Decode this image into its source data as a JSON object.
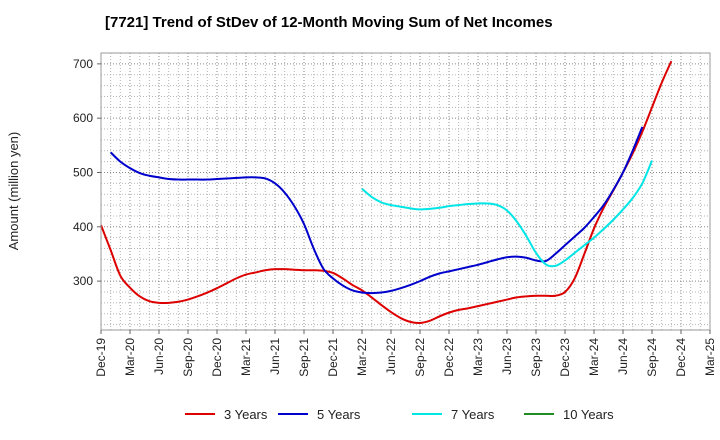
{
  "chart_data": {
    "type": "line",
    "title": "[7721]  Trend of StDev of 12-Month Moving Sum of Net Incomes",
    "ylabel": "Amount (million yen)",
    "xlabel": "",
    "ylim": [
      210,
      720
    ],
    "yticks": [
      300,
      400,
      500,
      600,
      700
    ],
    "x_start": "Dec-19",
    "x_end": "Mar-25",
    "xticks": [
      "Dec-19",
      "Mar-20",
      "Jun-20",
      "Sep-20",
      "Dec-20",
      "Mar-21",
      "Jun-21",
      "Sep-21",
      "Dec-21",
      "Mar-22",
      "Jun-22",
      "Sep-22",
      "Dec-22",
      "Mar-23",
      "Jun-23",
      "Sep-23",
      "Dec-23",
      "Mar-24",
      "Jun-24",
      "Sep-24",
      "Dec-24",
      "Mar-25"
    ],
    "grid": true,
    "legend_position": "bottom",
    "series": [
      {
        "name": "3 Years",
        "color": "#dd0000",
        "points": [
          [
            "Dec-19",
            403
          ],
          [
            "Jan-20",
            357
          ],
          [
            "Feb-20",
            310
          ],
          [
            "Mar-20",
            288
          ],
          [
            "Apr-20",
            272
          ],
          [
            "May-20",
            263
          ],
          [
            "Jun-20",
            260
          ],
          [
            "Jul-20",
            260
          ],
          [
            "Aug-20",
            262
          ],
          [
            "Sep-20",
            266
          ],
          [
            "Oct-20",
            272
          ],
          [
            "Nov-20",
            279
          ],
          [
            "Dec-20",
            287
          ],
          [
            "Jan-21",
            296
          ],
          [
            "Feb-21",
            305
          ],
          [
            "Mar-21",
            312
          ],
          [
            "Apr-21",
            316
          ],
          [
            "May-21",
            320
          ],
          [
            "Jun-21",
            322
          ],
          [
            "Jul-21",
            322
          ],
          [
            "Aug-21",
            321
          ],
          [
            "Sep-21",
            320
          ],
          [
            "Oct-21",
            320
          ],
          [
            "Nov-21",
            319
          ],
          [
            "Dec-21",
            315
          ],
          [
            "Jan-22",
            305
          ],
          [
            "Feb-22",
            293
          ],
          [
            "Mar-22",
            283
          ],
          [
            "Apr-22",
            270
          ],
          [
            "May-22",
            256
          ],
          [
            "Jun-22",
            243
          ],
          [
            "Jul-22",
            232
          ],
          [
            "Aug-22",
            225
          ],
          [
            "Sep-22",
            223
          ],
          [
            "Oct-22",
            227
          ],
          [
            "Nov-22",
            235
          ],
          [
            "Dec-22",
            242
          ],
          [
            "Jan-23",
            247
          ],
          [
            "Feb-23",
            250
          ],
          [
            "Mar-23",
            254
          ],
          [
            "Apr-23",
            258
          ],
          [
            "May-23",
            262
          ],
          [
            "Jun-23",
            266
          ],
          [
            "Jul-23",
            270
          ],
          [
            "Aug-23",
            272
          ],
          [
            "Sep-23",
            273
          ],
          [
            "Oct-23",
            273
          ],
          [
            "Nov-23",
            273
          ],
          [
            "Dec-23",
            280
          ],
          [
            "Jan-24",
            305
          ],
          [
            "Feb-24",
            350
          ],
          [
            "Mar-24",
            397
          ],
          [
            "Apr-24",
            435
          ],
          [
            "May-24",
            467
          ],
          [
            "Jun-24",
            500
          ],
          [
            "Jul-24",
            535
          ],
          [
            "Aug-24",
            575
          ],
          [
            "Sep-24",
            620
          ],
          [
            "Oct-24",
            665
          ],
          [
            "Nov-24",
            705
          ]
        ]
      },
      {
        "name": "5 Years",
        "color": "#0000cc",
        "points": [
          [
            "Jan-20",
            537
          ],
          [
            "Feb-20",
            520
          ],
          [
            "Mar-20",
            508
          ],
          [
            "Apr-20",
            499
          ],
          [
            "May-20",
            494
          ],
          [
            "Jun-20",
            491
          ],
          [
            "Jul-20",
            488
          ],
          [
            "Aug-20",
            487
          ],
          [
            "Sep-20",
            487
          ],
          [
            "Oct-20",
            487
          ],
          [
            "Nov-20",
            487
          ],
          [
            "Dec-20",
            488
          ],
          [
            "Jan-21",
            489
          ],
          [
            "Feb-21",
            490
          ],
          [
            "Mar-21",
            491
          ],
          [
            "Apr-21",
            491
          ],
          [
            "May-21",
            489
          ],
          [
            "Jun-21",
            480
          ],
          [
            "Jul-21",
            463
          ],
          [
            "Aug-21",
            438
          ],
          [
            "Sep-21",
            405
          ],
          [
            "Oct-21",
            360
          ],
          [
            "Nov-21",
            323
          ],
          [
            "Dec-21",
            305
          ],
          [
            "Jan-22",
            292
          ],
          [
            "Feb-22",
            283
          ],
          [
            "Mar-22",
            279
          ],
          [
            "Apr-22",
            278
          ],
          [
            "May-22",
            279
          ],
          [
            "Jun-22",
            282
          ],
          [
            "Jul-22",
            287
          ],
          [
            "Aug-22",
            293
          ],
          [
            "Sep-22",
            300
          ],
          [
            "Oct-22",
            308
          ],
          [
            "Nov-22",
            314
          ],
          [
            "Dec-22",
            318
          ],
          [
            "Jan-23",
            322
          ],
          [
            "Feb-23",
            326
          ],
          [
            "Mar-23",
            330
          ],
          [
            "Apr-23",
            335
          ],
          [
            "May-23",
            340
          ],
          [
            "Jun-23",
            344
          ],
          [
            "Jul-23",
            345
          ],
          [
            "Aug-23",
            343
          ],
          [
            "Sep-23",
            338
          ],
          [
            "Oct-23",
            337
          ],
          [
            "Nov-23",
            350
          ],
          [
            "Dec-23",
            366
          ],
          [
            "Jan-24",
            382
          ],
          [
            "Feb-24",
            398
          ],
          [
            "Mar-24",
            418
          ],
          [
            "Apr-24",
            440
          ],
          [
            "May-24",
            468
          ],
          [
            "Jun-24",
            500
          ],
          [
            "Jul-24",
            540
          ],
          [
            "Aug-24",
            584
          ]
        ]
      },
      {
        "name": "7 Years",
        "color": "#00e5e5",
        "points": [
          [
            "Mar-22",
            470
          ],
          [
            "Apr-22",
            455
          ],
          [
            "May-22",
            445
          ],
          [
            "Jun-22",
            440
          ],
          [
            "Jul-22",
            437
          ],
          [
            "Aug-22",
            434
          ],
          [
            "Sep-22",
            432
          ],
          [
            "Oct-22",
            433
          ],
          [
            "Nov-22",
            435
          ],
          [
            "Dec-22",
            438
          ],
          [
            "Jan-23",
            440
          ],
          [
            "Feb-23",
            442
          ],
          [
            "Mar-23",
            443
          ],
          [
            "Apr-23",
            443
          ],
          [
            "May-23",
            440
          ],
          [
            "Jun-23",
            430
          ],
          [
            "Jul-23",
            410
          ],
          [
            "Aug-23",
            383
          ],
          [
            "Sep-23",
            352
          ],
          [
            "Oct-23",
            331
          ],
          [
            "Nov-23",
            328
          ],
          [
            "Dec-23",
            338
          ],
          [
            "Jan-24",
            352
          ],
          [
            "Feb-24",
            366
          ],
          [
            "Mar-24",
            380
          ],
          [
            "Apr-24",
            396
          ],
          [
            "May-24",
            413
          ],
          [
            "Jun-24",
            432
          ],
          [
            "Jul-24",
            453
          ],
          [
            "Aug-24",
            480
          ],
          [
            "Sep-24",
            522
          ]
        ]
      },
      {
        "name": "10 Years",
        "color": "#228b22",
        "points": []
      }
    ]
  }
}
